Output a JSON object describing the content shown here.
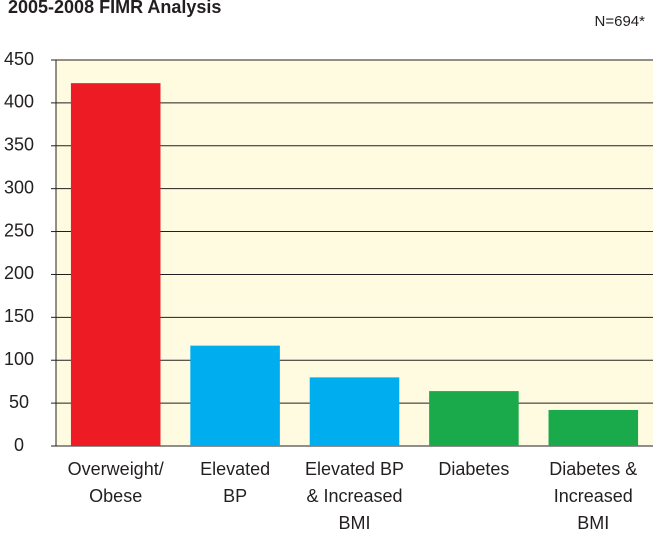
{
  "chart_data": {
    "type": "bar",
    "title": "2005-2008 FIMR Analysis",
    "annotation": "N=694*",
    "categories": [
      [
        "Overweight/",
        "Obese"
      ],
      [
        "Elevated",
        "BP"
      ],
      [
        "Elevated BP",
        "& Increased",
        "BMI"
      ],
      [
        "Diabetes"
      ],
      [
        "Diabetes &",
        "Increased",
        "BMI"
      ]
    ],
    "values": [
      423,
      117,
      80,
      64,
      42
    ],
    "colors": [
      "#ed1c24",
      "#00aeef",
      "#00aeef",
      "#1aaa4b",
      "#1aaa4b"
    ],
    "ylim": [
      0,
      450
    ],
    "yticks": [
      0,
      50,
      100,
      150,
      200,
      250,
      300,
      350,
      400,
      450
    ],
    "grid": true
  }
}
